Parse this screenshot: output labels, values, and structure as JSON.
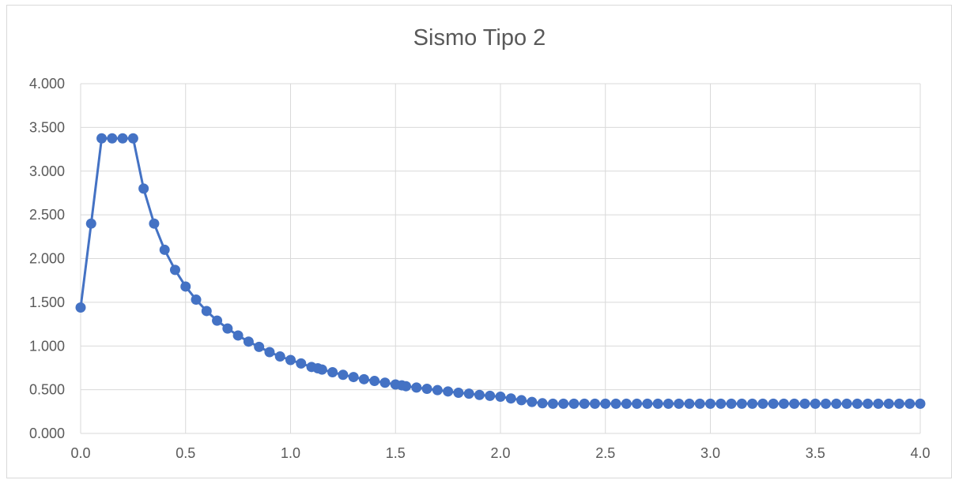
{
  "chart_data": {
    "type": "line",
    "title": "Sismo Tipo 2",
    "xlabel": "",
    "ylabel": "",
    "xlim": [
      0,
      4
    ],
    "ylim": [
      0,
      4
    ],
    "grid": true,
    "legend": "none",
    "x_ticks": [
      "0.0",
      "0.5",
      "1.0",
      "1.5",
      "2.0",
      "2.5",
      "3.0",
      "3.5",
      "4.0"
    ],
    "y_ticks": [
      "0.000",
      "0.500",
      "1.000",
      "1.500",
      "2.000",
      "2.500",
      "3.000",
      "3.500",
      "4.000"
    ],
    "series": [
      {
        "color": "#4472c4",
        "marker": "circle",
        "x": [
          0.0,
          0.05,
          0.1,
          0.15,
          0.2,
          0.25,
          0.3,
          0.35,
          0.4,
          0.45,
          0.5,
          0.55,
          0.6,
          0.65,
          0.7,
          0.75,
          0.8,
          0.85,
          0.9,
          0.95,
          1.0,
          1.05,
          1.1,
          1.13,
          1.15,
          1.2,
          1.25,
          1.3,
          1.35,
          1.4,
          1.45,
          1.5,
          1.53,
          1.55,
          1.6,
          1.65,
          1.7,
          1.75,
          1.8,
          1.85,
          1.9,
          1.95,
          2.0,
          2.05,
          2.1,
          2.15,
          2.2,
          2.25,
          2.3,
          2.35,
          2.4,
          2.45,
          2.5,
          2.55,
          2.6,
          2.65,
          2.7,
          2.75,
          2.8,
          2.85,
          2.9,
          2.95,
          3.0,
          3.05,
          3.1,
          3.15,
          3.2,
          3.25,
          3.3,
          3.35,
          3.4,
          3.45,
          3.5,
          3.55,
          3.6,
          3.65,
          3.7,
          3.75,
          3.8,
          3.85,
          3.9,
          3.95,
          4.0
        ],
        "y": [
          1.44,
          2.4,
          3.375,
          3.375,
          3.375,
          3.375,
          2.8,
          2.4,
          2.1,
          1.87,
          1.68,
          1.53,
          1.4,
          1.29,
          1.2,
          1.12,
          1.05,
          0.99,
          0.93,
          0.88,
          0.84,
          0.8,
          0.76,
          0.745,
          0.73,
          0.7,
          0.67,
          0.645,
          0.62,
          0.6,
          0.58,
          0.56,
          0.55,
          0.54,
          0.525,
          0.51,
          0.495,
          0.48,
          0.465,
          0.455,
          0.44,
          0.43,
          0.42,
          0.4,
          0.38,
          0.36,
          0.345,
          0.34,
          0.34,
          0.34,
          0.34,
          0.34,
          0.34,
          0.34,
          0.34,
          0.34,
          0.34,
          0.34,
          0.34,
          0.34,
          0.34,
          0.34,
          0.34,
          0.34,
          0.34,
          0.34,
          0.34,
          0.34,
          0.34,
          0.34,
          0.34,
          0.34,
          0.34,
          0.34,
          0.34,
          0.34,
          0.34,
          0.34,
          0.34,
          0.34,
          0.34,
          0.34,
          0.34
        ]
      }
    ]
  }
}
